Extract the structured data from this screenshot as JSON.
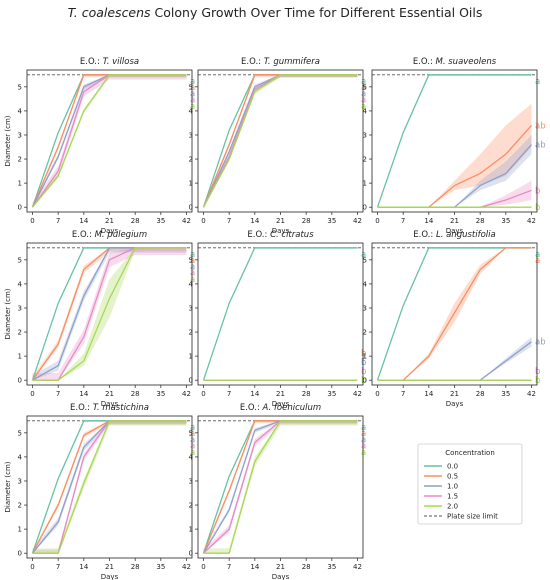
{
  "figure": {
    "title_italic": "T. coalescens",
    "title_rest": " Colony Growth Over Time for Different Essential Oils"
  },
  "colors": {
    "0.0": "#66c2a5",
    "0.5": "#fc8d62",
    "1.0": "#8da0cb",
    "1.5": "#e78ac3",
    "2.0": "#a6d854",
    "limit": "#555555"
  },
  "chart_data": {
    "type": "line",
    "xlabel": "Days",
    "ylabel": "Diameter (cm)",
    "x": [
      0,
      7,
      14,
      21,
      28,
      35,
      42
    ],
    "xticks": [
      "0",
      "7",
      "14",
      "21",
      "28",
      "35",
      "42"
    ],
    "ylim": [
      -0.2,
      5.7
    ],
    "yticks": [
      "0",
      "1",
      "2",
      "3",
      "4",
      "5"
    ],
    "plate_limit": 5.5,
    "legend": {
      "title": "Concentration",
      "entries": [
        "0.0",
        "0.5",
        "1.0",
        "1.5",
        "2.0",
        "Plate size limit"
      ]
    },
    "panels": [
      {
        "title_prefix": "E.O.: ",
        "title_italic": "T. villosa",
        "series": [
          {
            "conc": "0.0",
            "values": [
              0,
              3.1,
              5.5,
              5.5,
              5.5,
              5.5,
              5.5
            ],
            "band": 0.05
          },
          {
            "conc": "0.5",
            "values": [
              0,
              2.5,
              5.5,
              5.5,
              5.5,
              5.5,
              5.5
            ],
            "band": 0.1
          },
          {
            "conc": "1.0",
            "values": [
              0,
              2.1,
              5.0,
              5.5,
              5.5,
              5.5,
              5.5
            ],
            "band": 0.1
          },
          {
            "conc": "1.5",
            "values": [
              0,
              1.5,
              4.8,
              5.5,
              5.5,
              5.5,
              5.5
            ],
            "band": 0.2
          },
          {
            "conc": "2.0",
            "values": [
              0,
              1.3,
              4.0,
              5.5,
              5.5,
              5.5,
              5.5
            ],
            "band": 0.1
          }
        ],
        "letters": [
          "a",
          "a",
          "a",
          "a",
          "a"
        ]
      },
      {
        "title_prefix": "E.O.: ",
        "title_italic": "T. gummifera",
        "series": [
          {
            "conc": "0.0",
            "values": [
              0,
              3.2,
              5.5,
              5.5,
              5.5,
              5.5,
              5.5
            ],
            "band": 0.05
          },
          {
            "conc": "0.5",
            "values": [
              0,
              2.6,
              5.5,
              5.5,
              5.5,
              5.5,
              5.5
            ],
            "band": 0.1
          },
          {
            "conc": "1.0",
            "values": [
              0,
              2.3,
              5.0,
              5.5,
              5.5,
              5.5,
              5.5
            ],
            "band": 0.1
          },
          {
            "conc": "1.5",
            "values": [
              0,
              2.1,
              4.9,
              5.5,
              5.5,
              5.5,
              5.5
            ],
            "band": 0.1
          },
          {
            "conc": "2.0",
            "values": [
              0,
              2.0,
              4.8,
              5.5,
              5.5,
              5.5,
              5.5
            ],
            "band": 0.1
          }
        ],
        "letters": [
          "a",
          "a",
          "a",
          "a",
          "a"
        ]
      },
      {
        "title_prefix": "E.O.: ",
        "title_italic": "M. suaveolens",
        "series": [
          {
            "conc": "0.0",
            "values": [
              0,
              3.1,
              5.5,
              5.5,
              5.5,
              5.5,
              5.5
            ],
            "band": 0.05
          },
          {
            "conc": "0.5",
            "values": [
              0,
              0,
              0,
              0.9,
              1.4,
              2.2,
              3.4
            ],
            "band_lo": [
              0,
              0,
              0,
              0.7,
              0.9,
              1.3,
              2.5
            ],
            "band_hi": [
              0,
              0,
              0,
              1.1,
              2.2,
              3.4,
              4.3
            ]
          },
          {
            "conc": "1.0",
            "values": [
              0,
              0,
              0,
              0,
              0.9,
              1.4,
              2.6
            ],
            "band_lo": [
              0,
              0,
              0,
              0,
              0.7,
              1.1,
              2.2
            ],
            "band_hi": [
              0,
              0,
              0,
              0,
              1.1,
              1.9,
              3.0
            ]
          },
          {
            "conc": "1.5",
            "values": [
              0,
              0,
              0,
              0,
              0,
              0.3,
              0.7
            ],
            "band_lo": [
              0,
              0,
              0,
              0,
              0,
              0.1,
              0.3
            ],
            "band_hi": [
              0,
              0,
              0,
              0,
              0,
              0.5,
              1.1
            ]
          },
          {
            "conc": "2.0",
            "values": [
              0,
              0,
              0,
              0,
              0,
              0,
              0
            ],
            "band": 0
          }
        ],
        "letters": [
          "a",
          "ab",
          "ab",
          "b",
          "b"
        ]
      },
      {
        "title_prefix": "E.O.: ",
        "title_italic": "M. pulegium",
        "series": [
          {
            "conc": "0.0",
            "values": [
              0,
              3.2,
              5.5,
              5.5,
              5.5,
              5.5,
              5.5
            ],
            "band": 0.05
          },
          {
            "conc": "0.5",
            "values": [
              0,
              1.5,
              4.6,
              5.5,
              5.5,
              5.5,
              5.5
            ],
            "band": 0.15
          },
          {
            "conc": "1.0",
            "values": [
              0,
              0.6,
              3.5,
              5.5,
              5.5,
              5.5,
              5.5
            ],
            "band": 0.2
          },
          {
            "conc": "1.5",
            "values": [
              0,
              0,
              1.8,
              5.0,
              5.5,
              5.5,
              5.5
            ],
            "band": 0.3
          },
          {
            "conc": "2.0",
            "values": [
              0,
              0,
              0.8,
              3.4,
              5.5,
              5.5,
              5.5
            ],
            "band_lo": [
              0,
              0,
              0.6,
              2.6,
              5.4,
              5.5,
              5.5
            ],
            "band_hi": [
              0,
              0,
              1.1,
              4.2,
              5.5,
              5.5,
              5.5
            ]
          }
        ],
        "letters": [
          "a",
          "a",
          "a",
          "a",
          "a"
        ]
      },
      {
        "title_prefix": "E.O.: ",
        "title_italic": "C. citratus",
        "series": [
          {
            "conc": "0.0",
            "values": [
              0,
              3.2,
              5.5,
              5.5,
              5.5,
              5.5,
              5.5
            ],
            "band": 0.05
          },
          {
            "conc": "0.5",
            "values": [
              0,
              0,
              0,
              0,
              0,
              0,
              0
            ],
            "band": 0
          },
          {
            "conc": "1.0",
            "values": [
              0,
              0,
              0,
              0,
              0,
              0,
              0
            ],
            "band": 0
          },
          {
            "conc": "1.5",
            "values": [
              0,
              0,
              0,
              0,
              0,
              0,
              0
            ],
            "band": 0
          },
          {
            "conc": "2.0",
            "values": [
              0,
              0,
              0,
              0,
              0,
              0,
              0
            ],
            "band": 0
          }
        ],
        "letters": [
          "a",
          "b",
          "b",
          "b",
          "b"
        ]
      },
      {
        "title_prefix": "E.O.: ",
        "title_italic": "L. angustifolia",
        "series": [
          {
            "conc": "0.0",
            "values": [
              0,
              3.1,
              5.5,
              5.5,
              5.5,
              5.5,
              5.5
            ],
            "band": 0.05
          },
          {
            "conc": "0.5",
            "values": [
              0,
              0,
              1.0,
              2.8,
              4.6,
              5.5,
              5.5
            ],
            "band_lo": [
              0,
              0,
              0.9,
              2.4,
              4.4,
              5.5,
              5.5
            ],
            "band_hi": [
              0,
              0,
              1.1,
              3.2,
              4.8,
              5.5,
              5.5
            ]
          },
          {
            "conc": "1.0",
            "values": [
              0,
              0,
              0,
              0,
              0,
              0.8,
              1.6
            ],
            "band_lo": [
              0,
              0,
              0,
              0,
              0,
              0.7,
              1.4
            ],
            "band_hi": [
              0,
              0,
              0,
              0,
              0,
              0.9,
              1.8
            ]
          },
          {
            "conc": "1.5",
            "values": [
              0,
              0,
              0,
              0,
              0,
              0,
              0
            ],
            "band": 0
          },
          {
            "conc": "2.0",
            "values": [
              0,
              0,
              0,
              0,
              0,
              0,
              0
            ],
            "band": 0
          }
        ],
        "letters": [
          "a",
          "a",
          "ab",
          "b",
          "b"
        ]
      },
      {
        "title_prefix": "E.O.: ",
        "title_italic": "T. mastichina",
        "series": [
          {
            "conc": "0.0",
            "values": [
              0,
              3.1,
              5.5,
              5.5,
              5.5,
              5.5,
              5.5
            ],
            "band": 0.05
          },
          {
            "conc": "0.5",
            "values": [
              0,
              2.0,
              4.9,
              5.5,
              5.5,
              5.5,
              5.5
            ],
            "band": 0.1
          },
          {
            "conc": "1.0",
            "values": [
              0,
              1.3,
              4.4,
              5.5,
              5.5,
              5.5,
              5.5
            ],
            "band": 0.15
          },
          {
            "conc": "1.5",
            "values": [
              0,
              0,
              4.0,
              5.5,
              5.5,
              5.5,
              5.5
            ],
            "band": 0.15
          },
          {
            "conc": "2.0",
            "values": [
              0,
              0,
              2.9,
              5.5,
              5.5,
              5.5,
              5.5
            ],
            "band": 0.2
          }
        ],
        "letters": [
          "a",
          "a",
          "a",
          "a",
          "a"
        ]
      },
      {
        "title_prefix": "E.O.: ",
        "title_italic": "A. foeniculum",
        "series": [
          {
            "conc": "0.0",
            "values": [
              0,
              3.2,
              5.5,
              5.5,
              5.5,
              5.5,
              5.5
            ],
            "band": 0.05
          },
          {
            "conc": "0.5",
            "values": [
              0,
              2.6,
              5.5,
              5.5,
              5.5,
              5.5,
              5.5
            ],
            "band": 0.1
          },
          {
            "conc": "1.0",
            "values": [
              0,
              1.8,
              5.1,
              5.5,
              5.5,
              5.5,
              5.5
            ],
            "band": 0.1
          },
          {
            "conc": "1.5",
            "values": [
              0,
              1.0,
              4.6,
              5.5,
              5.5,
              5.5,
              5.5
            ],
            "band": 0.15
          },
          {
            "conc": "2.0",
            "values": [
              0,
              0,
              3.8,
              5.5,
              5.5,
              5.5,
              5.5
            ],
            "band": 0.2
          }
        ],
        "letters": [
          "a",
          "a",
          "a",
          "a",
          "a"
        ]
      }
    ]
  }
}
